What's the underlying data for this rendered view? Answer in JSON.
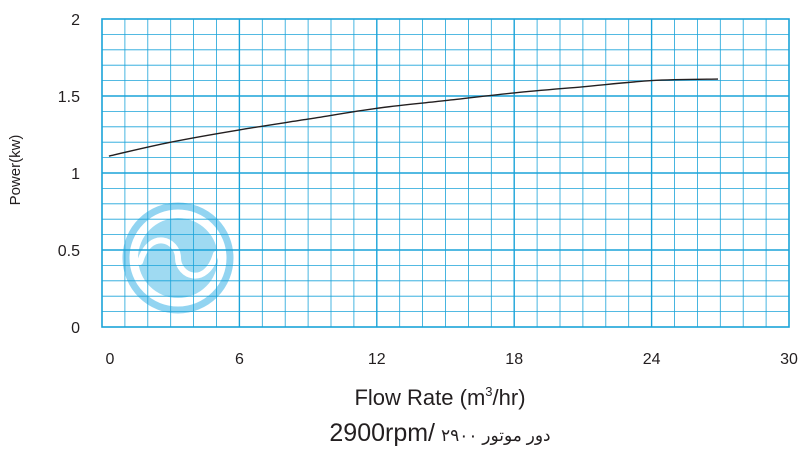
{
  "chart_data": {
    "type": "line",
    "title": "",
    "xlabel": {
      "prefix": "Flow Rate (m",
      "superscript": "3",
      "suffix": "/hr)"
    },
    "ylabel": "Power(kw)",
    "subtitle_speed": "2900rpm/",
    "subtitle_farsi": "دور موتور ۲۹۰۰",
    "xlim": [
      0,
      30
    ],
    "ylim": [
      0,
      2
    ],
    "x_ticks": [
      0,
      6,
      12,
      18,
      24,
      30
    ],
    "x_tick_labels": [
      "0",
      "6",
      "12",
      "18",
      "24",
      "30"
    ],
    "y_ticks": [
      0,
      0.5,
      1,
      1.5,
      2
    ],
    "y_tick_labels": [
      "0",
      "0.5",
      "1",
      "1.5",
      "2"
    ],
    "grid": {
      "visible": true,
      "x_minor_step": 1,
      "y_minor_step": 0.1,
      "color": "#1aa3d9",
      "frame_color": "#1aa3d9"
    },
    "series": [
      {
        "color": "#231f20",
        "x": [
          0.3,
          3,
          6,
          9,
          12,
          15,
          18,
          21,
          24,
          26.9
        ],
        "y": [
          1.11,
          1.2,
          1.28,
          1.35,
          1.42,
          1.47,
          1.52,
          1.56,
          1.6,
          1.61
        ]
      }
    ],
    "watermark_icon": "company-logo-icon",
    "watermark_color": "#7fcdee"
  }
}
